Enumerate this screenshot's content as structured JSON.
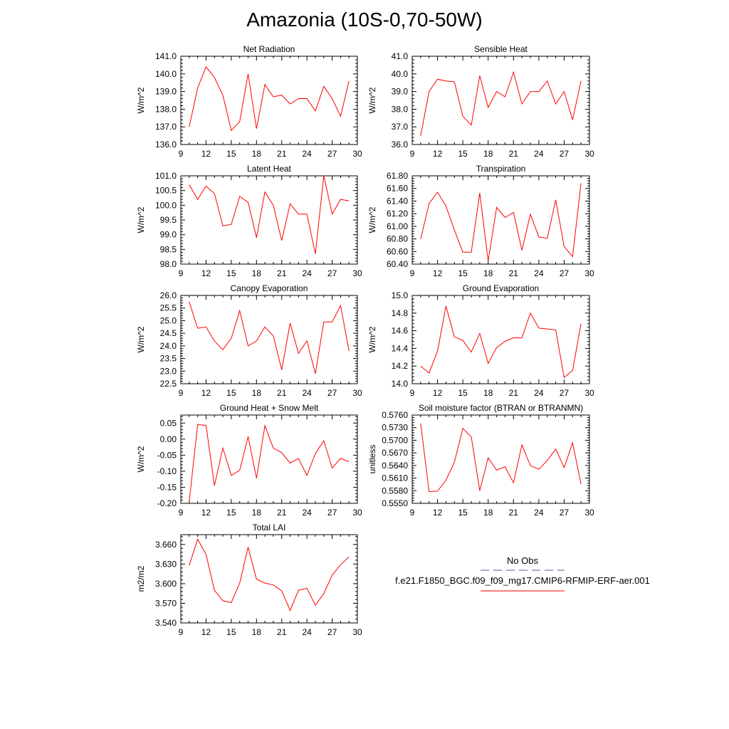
{
  "title": "Amazonia (10S-0,70-50W)",
  "legend": {
    "obs_label": "No Obs",
    "obs_color": "#5a5aa0",
    "case_label": "f.e21.F1850_BGC.f09_f09_mg17.CMIP6-RFMIP-ERF-aer.001",
    "case_color": "#ff0000"
  },
  "chart_data": [
    {
      "type": "line",
      "title": "Net Radiation",
      "ylabel": "W/m^2",
      "xlim": [
        9,
        30
      ],
      "ylim": [
        136,
        141
      ],
      "xticks": [
        "9",
        "12",
        "15",
        "18",
        "21",
        "24",
        "27",
        "30"
      ],
      "yticks": [
        "136.0",
        "137.0",
        "138.0",
        "139.0",
        "140.0",
        "141.0"
      ],
      "x": [
        10,
        11,
        12,
        13,
        14,
        15,
        16,
        17,
        18,
        19,
        20,
        21,
        22,
        23,
        24,
        25,
        26,
        27,
        28,
        29
      ],
      "series": [
        {
          "color": "#ff0000",
          "values": [
            137.0,
            139.2,
            140.4,
            139.8,
            138.8,
            136.8,
            137.3,
            140.0,
            136.9,
            139.4,
            138.7,
            138.8,
            138.3,
            138.6,
            138.6,
            137.9,
            139.3,
            138.6,
            137.6,
            139.6
          ]
        }
      ]
    },
    {
      "type": "line",
      "title": "Sensible Heat",
      "ylabel": "W/m^2",
      "xlim": [
        9,
        30
      ],
      "ylim": [
        36,
        41
      ],
      "xticks": [
        "9",
        "12",
        "15",
        "18",
        "21",
        "24",
        "27",
        "30"
      ],
      "yticks": [
        "36.0",
        "37.0",
        "38.0",
        "39.0",
        "40.0",
        "41.0"
      ],
      "x": [
        10,
        11,
        12,
        13,
        14,
        15,
        16,
        17,
        18,
        19,
        20,
        21,
        22,
        23,
        24,
        25,
        26,
        27,
        28,
        29
      ],
      "series": [
        {
          "color": "#ff0000",
          "values": [
            36.5,
            39.0,
            39.7,
            39.6,
            39.55,
            37.6,
            37.1,
            39.9,
            38.1,
            39.0,
            38.7,
            40.1,
            38.3,
            39.0,
            39.0,
            39.6,
            38.3,
            39.0,
            37.4,
            39.6
          ]
        }
      ]
    },
    {
      "type": "line",
      "title": "Latent Heat",
      "ylabel": "W/m^2",
      "xlim": [
        9,
        30
      ],
      "ylim": [
        98,
        101
      ],
      "xticks": [
        "9",
        "12",
        "15",
        "18",
        "21",
        "24",
        "27",
        "30"
      ],
      "yticks": [
        "98.0",
        "98.5",
        "99.0",
        "99.5",
        "100.0",
        "100.5",
        "101.0"
      ],
      "x": [
        10,
        11,
        12,
        13,
        14,
        15,
        16,
        17,
        18,
        19,
        20,
        21,
        22,
        23,
        24,
        25,
        26,
        27,
        28,
        29
      ],
      "series": [
        {
          "color": "#ff0000",
          "values": [
            100.7,
            100.2,
            100.65,
            100.4,
            99.3,
            99.35,
            100.3,
            100.1,
            98.9,
            100.45,
            100.0,
            98.8,
            100.05,
            99.7,
            99.7,
            98.35,
            101.0,
            99.7,
            100.2,
            100.15
          ]
        }
      ]
    },
    {
      "type": "line",
      "title": "Transpiration",
      "ylabel": "W/m^2",
      "xlim": [
        9,
        30
      ],
      "ylim": [
        60.4,
        61.8
      ],
      "xticks": [
        "9",
        "12",
        "15",
        "18",
        "21",
        "24",
        "27",
        "30"
      ],
      "yticks": [
        "60.40",
        "60.60",
        "60.80",
        "61.00",
        "61.20",
        "61.40",
        "61.60",
        "61.80"
      ],
      "x": [
        10,
        11,
        12,
        13,
        14,
        15,
        16,
        17,
        18,
        19,
        20,
        21,
        22,
        23,
        24,
        25,
        26,
        27,
        28,
        29
      ],
      "series": [
        {
          "color": "#ff0000",
          "values": [
            60.8,
            61.36,
            61.54,
            61.32,
            60.94,
            60.59,
            60.59,
            61.53,
            60.45,
            61.3,
            61.14,
            61.22,
            60.62,
            61.19,
            60.83,
            60.81,
            61.42,
            60.68,
            60.52,
            61.68
          ]
        }
      ]
    },
    {
      "type": "line",
      "title": "Canopy Evaporation",
      "ylabel": "W/m^2",
      "xlim": [
        9,
        30
      ],
      "ylim": [
        22.5,
        26
      ],
      "xticks": [
        "9",
        "12",
        "15",
        "18",
        "21",
        "24",
        "27",
        "30"
      ],
      "yticks": [
        "22.5",
        "23.0",
        "23.5",
        "24.0",
        "24.5",
        "25.0",
        "25.5",
        "26.0"
      ],
      "x": [
        10,
        11,
        12,
        13,
        14,
        15,
        16,
        17,
        18,
        19,
        20,
        21,
        22,
        23,
        24,
        25,
        26,
        27,
        28,
        29
      ],
      "series": [
        {
          "color": "#ff0000",
          "values": [
            25.75,
            24.7,
            24.75,
            24.2,
            23.85,
            24.3,
            25.4,
            24.0,
            24.2,
            24.75,
            24.4,
            23.05,
            24.9,
            23.7,
            24.2,
            22.9,
            24.95,
            24.95,
            25.6,
            23.8
          ]
        }
      ]
    },
    {
      "type": "line",
      "title": "Ground Evaporation",
      "ylabel": "W/m^2",
      "xlim": [
        9,
        30
      ],
      "ylim": [
        14.0,
        15.0
      ],
      "xticks": [
        "9",
        "12",
        "15",
        "18",
        "21",
        "24",
        "27",
        "30"
      ],
      "yticks": [
        "14.0",
        "14.2",
        "14.4",
        "14.6",
        "14.8",
        "15.0"
      ],
      "x": [
        10,
        11,
        12,
        13,
        14,
        15,
        16,
        17,
        18,
        19,
        20,
        21,
        22,
        23,
        24,
        25,
        26,
        27,
        28,
        29
      ],
      "series": [
        {
          "color": "#ff0000",
          "values": [
            14.2,
            14.12,
            14.37,
            14.88,
            14.53,
            14.49,
            14.36,
            14.57,
            14.23,
            14.41,
            14.48,
            14.52,
            14.52,
            14.8,
            14.63,
            14.62,
            14.61,
            14.07,
            14.15,
            14.68
          ]
        }
      ]
    },
    {
      "type": "line",
      "title": "Ground Heat + Snow Melt",
      "ylabel": "W/m^2",
      "xlim": [
        9,
        30
      ],
      "ylim": [
        -0.2,
        0.075
      ],
      "xticks": [
        "9",
        "12",
        "15",
        "18",
        "21",
        "24",
        "27",
        "30"
      ],
      "yticks": [
        "-0.20",
        "-0.15",
        "-0.10",
        "-0.05",
        "0.00",
        "0.05"
      ],
      "ytickvals": [
        -0.2,
        -0.15,
        -0.1,
        -0.05,
        0.0,
        0.05
      ],
      "x": [
        10,
        11,
        12,
        13,
        14,
        15,
        16,
        17,
        18,
        19,
        20,
        21,
        22,
        23,
        24,
        25,
        26,
        27,
        28,
        29
      ],
      "series": [
        {
          "color": "#ff0000",
          "values": [
            -0.195,
            0.045,
            0.043,
            -0.145,
            -0.028,
            -0.113,
            -0.097,
            0.008,
            -0.122,
            0.042,
            -0.028,
            -0.042,
            -0.075,
            -0.06,
            -0.113,
            -0.045,
            -0.005,
            -0.09,
            -0.06,
            -0.07
          ]
        }
      ]
    },
    {
      "type": "line",
      "title": "Soil moisture factor (BTRAN or BTRANMN)",
      "ylabel": "unitless",
      "xlim": [
        9,
        30
      ],
      "ylim": [
        0.555,
        0.576
      ],
      "xticks": [
        "9",
        "12",
        "15",
        "18",
        "21",
        "24",
        "27",
        "30"
      ],
      "yticks": [
        "0.5550",
        "0.5580",
        "0.5610",
        "0.5640",
        "0.5670",
        "0.5700",
        "0.5730",
        "0.5760"
      ],
      "x": [
        10,
        11,
        12,
        13,
        14,
        15,
        16,
        17,
        18,
        19,
        20,
        21,
        22,
        23,
        24,
        25,
        26,
        27,
        28,
        29
      ],
      "series": [
        {
          "color": "#ff0000",
          "values": [
            0.574,
            0.5578,
            0.5579,
            0.5605,
            0.5648,
            0.5728,
            0.5708,
            0.558,
            0.5658,
            0.5629,
            0.5637,
            0.5599,
            0.5689,
            0.564,
            0.5631,
            0.5652,
            0.5679,
            0.5635,
            0.5694,
            0.5596
          ]
        }
      ]
    },
    {
      "type": "line",
      "title": "Total LAI",
      "ylabel": "m2/m2",
      "xlim": [
        9,
        30
      ],
      "ylim": [
        3.54,
        3.675
      ],
      "xticks": [
        "9",
        "12",
        "15",
        "18",
        "21",
        "24",
        "27",
        "30"
      ],
      "yticks": [
        "3.540",
        "3.570",
        "3.600",
        "3.630",
        "3.660"
      ],
      "ytickvals": [
        3.54,
        3.57,
        3.6,
        3.63,
        3.66
      ],
      "x": [
        10,
        11,
        12,
        13,
        14,
        15,
        16,
        17,
        18,
        19,
        20,
        21,
        22,
        23,
        24,
        25,
        26,
        27,
        28,
        29
      ],
      "series": [
        {
          "color": "#ff0000",
          "values": [
            3.628,
            3.668,
            3.645,
            3.59,
            3.574,
            3.571,
            3.601,
            3.656,
            3.607,
            3.601,
            3.598,
            3.589,
            3.559,
            3.59,
            3.593,
            3.567,
            3.585,
            3.613,
            3.629,
            3.641
          ]
        }
      ]
    }
  ]
}
